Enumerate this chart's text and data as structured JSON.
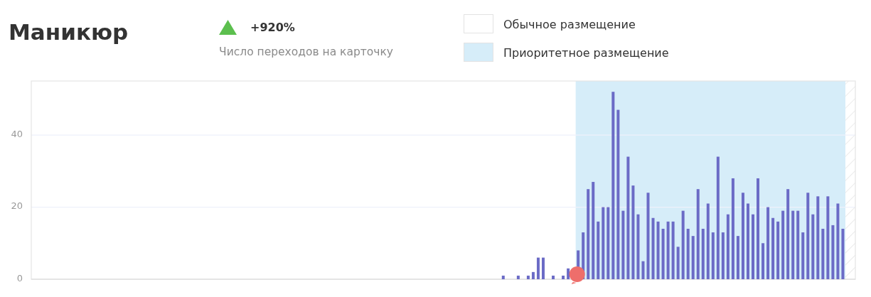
{
  "chart_data": {
    "type": "bar",
    "title": "Маникюр",
    "subtitle": "Число переходов на карточку",
    "annotations": [
      "+920%",
      "Обычное размещение",
      "Приоритетное размещение"
    ],
    "categories": [
      null,
      null,
      null,
      null,
      null,
      null,
      null,
      null,
      null,
      null,
      null,
      null,
      null,
      null,
      null,
      null,
      null,
      null,
      null,
      null,
      null,
      null,
      null,
      null,
      null,
      null,
      null,
      null,
      null,
      null,
      null,
      null,
      null,
      null,
      null,
      null,
      null,
      null,
      null,
      null,
      null,
      null,
      null,
      null,
      null,
      null,
      null,
      null,
      null,
      null,
      null,
      null,
      null,
      null,
      null,
      null,
      null,
      null,
      null,
      null,
      null,
      null,
      null,
      null,
      null,
      null,
      null,
      null,
      null,
      null,
      null,
      null,
      null,
      null,
      null,
      null,
      null,
      null,
      null,
      null,
      null,
      null,
      null,
      null,
      null,
      null,
      null,
      null,
      null,
      null,
      null,
      null,
      null,
      null,
      null,
      null,
      null,
      null,
      null,
      null,
      null,
      null,
      null,
      null,
      null,
      null,
      null,
      null,
      null,
      null,
      null,
      null,
      null,
      null,
      null,
      null,
      null,
      null,
      null,
      null,
      null,
      null,
      null,
      null,
      null,
      null,
      null,
      null,
      null,
      null,
      null,
      null,
      null,
      null,
      null,
      null,
      null,
      null,
      null,
      null,
      null,
      null,
      null,
      null,
      null,
      null,
      null,
      null,
      null,
      null,
      null,
      null,
      null,
      null,
      null,
      null,
      null,
      null,
      null,
      null,
      null,
      null,
      null,
      null,
      null
    ],
    "values": [
      null,
      null,
      null,
      null,
      null,
      null,
      null,
      null,
      null,
      null,
      null,
      null,
      null,
      null,
      null,
      null,
      null,
      null,
      null,
      null,
      null,
      null,
      null,
      null,
      null,
      null,
      null,
      null,
      null,
      null,
      null,
      null,
      null,
      null,
      null,
      null,
      null,
      null,
      null,
      null,
      null,
      null,
      null,
      null,
      null,
      null,
      null,
      null,
      null,
      null,
      null,
      null,
      null,
      null,
      null,
      null,
      null,
      null,
      null,
      null,
      null,
      null,
      null,
      null,
      null,
      null,
      null,
      null,
      null,
      null,
      null,
      null,
      null,
      null,
      null,
      null,
      null,
      null,
      null,
      null,
      null,
      null,
      null,
      null,
      null,
      null,
      null,
      null,
      null,
      null,
      null,
      null,
      null,
      null,
      1,
      null,
      null,
      1,
      null,
      1,
      2,
      6,
      6,
      null,
      1,
      null,
      1,
      3,
      null,
      8,
      13,
      25,
      27,
      16,
      20,
      20,
      52,
      47,
      19,
      34,
      26,
      18,
      5,
      24,
      17,
      16,
      14,
      16,
      16,
      9,
      19,
      14,
      12,
      25,
      14,
      21,
      13,
      34,
      13,
      18,
      28,
      12,
      24,
      21,
      18,
      28,
      10,
      20,
      17,
      16,
      19,
      25,
      19,
      19,
      13,
      24,
      18,
      23,
      14,
      23,
      15,
      21,
      14,
      null,
      null
    ],
    "color": "#6b6bc6",
    "ylim": [
      0,
      55
    ],
    "yticks": [
      0,
      20,
      40
    ],
    "grid": "y",
    "tick_labels": "y"
  }
}
